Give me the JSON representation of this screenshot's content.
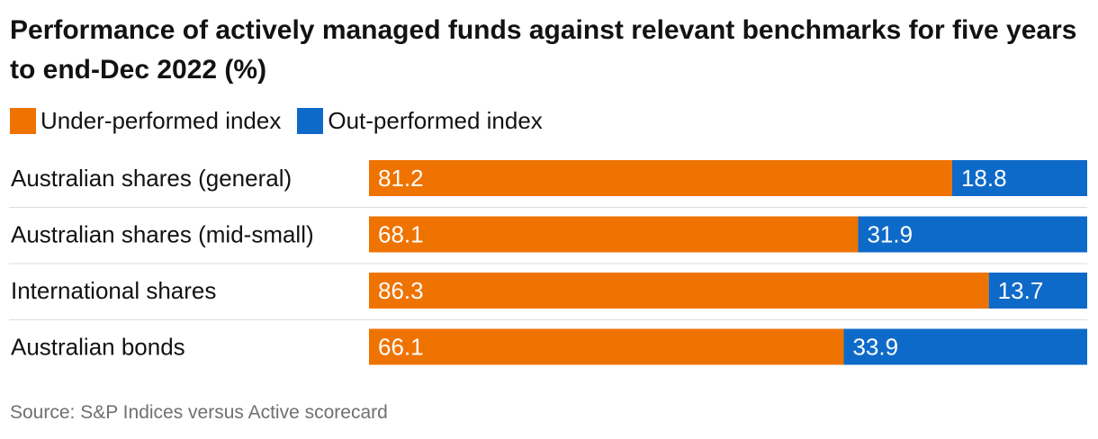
{
  "colors": {
    "under": "#ef7300",
    "out": "#0e6ac9"
  },
  "chart_data": {
    "type": "bar",
    "orientation": "horizontal",
    "stacked": true,
    "title": "Performance of actively managed funds against relevant benchmarks for five years to end-Dec 2022 (%)",
    "categories": [
      "Australian shares (general)",
      "Australian shares (mid-small)",
      "International shares",
      "Australian bonds"
    ],
    "series": [
      {
        "name": "Under-performed index",
        "color": "#ef7300",
        "values": [
          81.2,
          68.1,
          86.3,
          66.1
        ]
      },
      {
        "name": "Out-performed index",
        "color": "#0e6ac9",
        "values": [
          18.8,
          31.9,
          13.7,
          33.9
        ]
      }
    ],
    "xlim": [
      0,
      100
    ],
    "grid": false,
    "legend": "top-left",
    "source": "Source: S&P Indices versus Active scorecard"
  }
}
